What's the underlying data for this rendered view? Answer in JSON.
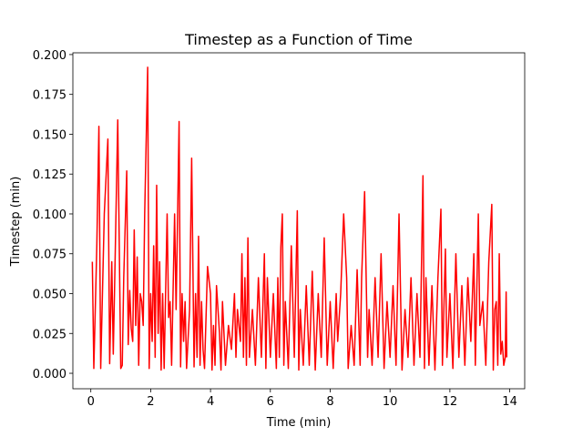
{
  "chart_data": {
    "type": "line",
    "title": "Timestep as a Function of Time",
    "xlabel": "Time (min)",
    "ylabel": "Timestep (min)",
    "x": [
      0.05,
      0.1,
      0.2,
      0.27,
      0.33,
      0.45,
      0.57,
      0.63,
      0.7,
      0.75,
      0.8,
      0.9,
      1.0,
      1.05,
      1.1,
      1.2,
      1.25,
      1.3,
      1.35,
      1.4,
      1.45,
      1.5,
      1.55,
      1.6,
      1.65,
      1.7,
      1.75,
      1.8,
      1.9,
      1.95,
      2.0,
      2.05,
      2.1,
      2.15,
      2.2,
      2.25,
      2.3,
      2.35,
      2.4,
      2.45,
      2.55,
      2.6,
      2.65,
      2.7,
      2.8,
      2.85,
      2.95,
      3.0,
      3.05,
      3.1,
      3.15,
      3.2,
      3.3,
      3.37,
      3.45,
      3.5,
      3.55,
      3.6,
      3.65,
      3.7,
      3.75,
      3.8,
      3.9,
      4.0,
      4.05,
      4.1,
      4.15,
      4.2,
      4.3,
      4.35,
      4.4,
      4.5,
      4.6,
      4.7,
      4.8,
      4.85,
      4.9,
      5.0,
      5.05,
      5.1,
      5.15,
      5.2,
      5.25,
      5.3,
      5.4,
      5.5,
      5.6,
      5.7,
      5.8,
      5.85,
      5.9,
      6.0,
      6.1,
      6.2,
      6.25,
      6.3,
      6.35,
      6.4,
      6.45,
      6.5,
      6.6,
      6.7,
      6.8,
      6.9,
      6.95,
      7.0,
      7.1,
      7.2,
      7.3,
      7.4,
      7.5,
      7.6,
      7.7,
      7.8,
      7.9,
      8.0,
      8.1,
      8.2,
      8.25,
      8.35,
      8.45,
      8.55,
      8.6,
      8.7,
      8.8,
      8.9,
      9.0,
      9.05,
      9.15,
      9.25,
      9.3,
      9.4,
      9.5,
      9.6,
      9.7,
      9.8,
      9.9,
      10.0,
      10.1,
      10.2,
      10.3,
      10.4,
      10.5,
      10.6,
      10.7,
      10.8,
      10.9,
      11.0,
      11.1,
      11.15,
      11.2,
      11.3,
      11.4,
      11.5,
      11.6,
      11.7,
      11.75,
      11.85,
      11.9,
      12.0,
      12.1,
      12.2,
      12.3,
      12.4,
      12.5,
      12.6,
      12.7,
      12.8,
      12.85,
      12.95,
      13.0,
      13.1,
      13.2,
      13.3,
      13.4,
      13.45,
      13.5,
      13.55,
      13.6,
      13.65,
      13.7,
      13.75,
      13.8,
      13.85,
      13.88,
      13.9
    ],
    "series": [
      {
        "name": "Timestep",
        "color": "#ff0000",
        "values": [
          0.07,
          0.003,
          0.08,
          0.155,
          0.003,
          0.1,
          0.147,
          0.006,
          0.07,
          0.012,
          0.06,
          0.159,
          0.003,
          0.005,
          0.06,
          0.127,
          0.018,
          0.052,
          0.028,
          0.02,
          0.09,
          0.03,
          0.073,
          0.005,
          0.05,
          0.045,
          0.03,
          0.1,
          0.192,
          0.003,
          0.05,
          0.02,
          0.08,
          0.01,
          0.118,
          0.025,
          0.07,
          0.002,
          0.05,
          0.003,
          0.1,
          0.035,
          0.045,
          0.005,
          0.1,
          0.04,
          0.158,
          0.004,
          0.05,
          0.02,
          0.045,
          0.003,
          0.04,
          0.135,
          0.004,
          0.05,
          0.01,
          0.086,
          0.005,
          0.045,
          0.015,
          0.003,
          0.067,
          0.05,
          0.002,
          0.03,
          0.005,
          0.055,
          0.025,
          0.002,
          0.045,
          0.005,
          0.03,
          0.015,
          0.05,
          0.01,
          0.04,
          0.02,
          0.075,
          0.01,
          0.06,
          0.005,
          0.085,
          0.01,
          0.04,
          0.005,
          0.06,
          0.01,
          0.075,
          0.003,
          0.06,
          0.01,
          0.05,
          0.003,
          0.06,
          0.01,
          0.079,
          0.1,
          0.005,
          0.045,
          0.003,
          0.08,
          0.01,
          0.102,
          0.002,
          0.04,
          0.005,
          0.055,
          0.005,
          0.064,
          0.002,
          0.05,
          0.01,
          0.085,
          0.005,
          0.045,
          0.003,
          0.05,
          0.02,
          0.05,
          0.1,
          0.06,
          0.003,
          0.03,
          0.005,
          0.065,
          0.005,
          0.06,
          0.114,
          0.01,
          0.04,
          0.005,
          0.06,
          0.01,
          0.075,
          0.003,
          0.045,
          0.01,
          0.055,
          0.005,
          0.1,
          0.002,
          0.04,
          0.01,
          0.06,
          0.005,
          0.05,
          0.01,
          0.124,
          0.003,
          0.06,
          0.005,
          0.055,
          0.002,
          0.06,
          0.103,
          0.005,
          0.078,
          0.01,
          0.05,
          0.003,
          0.075,
          0.01,
          0.055,
          0.005,
          0.06,
          0.02,
          0.075,
          0.005,
          0.1,
          0.03,
          0.045,
          0.005,
          0.07,
          0.106,
          0.002,
          0.04,
          0.045,
          0.005,
          0.075,
          0.012,
          0.02,
          0.005,
          0.01,
          0.051,
          0.01
        ]
      }
    ],
    "xlim": [
      -0.6,
      14.5
    ],
    "ylim": [
      -0.0097,
      0.2011
    ],
    "xticks": [
      0,
      2,
      4,
      6,
      8,
      10,
      12,
      14
    ],
    "yticks": [
      {
        "value": 0,
        "label": "0.000"
      },
      {
        "value": 0.025,
        "label": "0.025"
      },
      {
        "value": 0.05,
        "label": "0.050"
      },
      {
        "value": 0.075,
        "label": "0.075"
      },
      {
        "value": 0.1,
        "label": "0.100"
      },
      {
        "value": 0.125,
        "label": "0.125"
      },
      {
        "value": 0.15,
        "label": "0.150"
      },
      {
        "value": 0.175,
        "label": "0.175"
      },
      {
        "value": 0.2,
        "label": "0.200"
      }
    ],
    "grid": false
  }
}
